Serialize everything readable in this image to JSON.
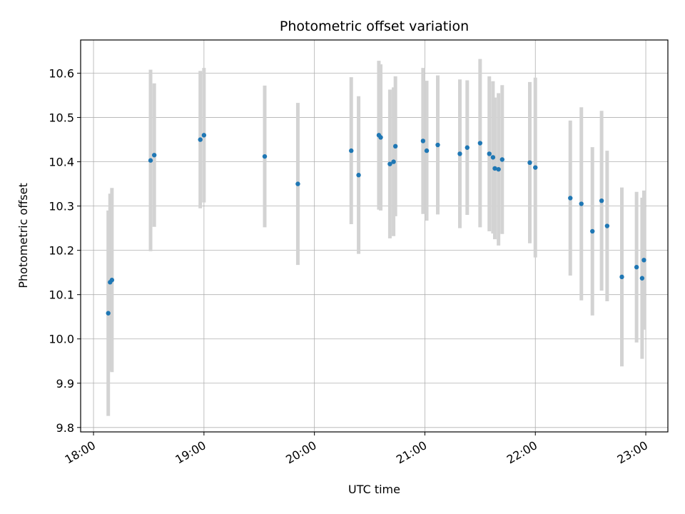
{
  "chart_data": {
    "type": "scatter",
    "title": "Photometric offset variation",
    "xlabel": "UTC time",
    "ylabel": "Photometric offset",
    "xlim": [
      "17:53",
      "23:12"
    ],
    "ylim": [
      9.79,
      10.675
    ],
    "x_ticks": [
      "18:00",
      "19:00",
      "20:00",
      "21:00",
      "22:00",
      "23:00"
    ],
    "y_ticks": [
      9.8,
      9.9,
      10.0,
      10.1,
      10.2,
      10.3,
      10.4,
      10.5,
      10.6
    ],
    "y_tick_labels": [
      "9.8",
      "9.9",
      "10.0",
      "10.1",
      "10.2",
      "10.3",
      "10.4",
      "10.5",
      "10.6"
    ],
    "grid": true,
    "point_color": "#1f77b4",
    "errorbar_color": "#d3d3d3",
    "points": [
      {
        "x": "18:08",
        "y": 10.058,
        "err": 0.232
      },
      {
        "x": "18:09",
        "y": 10.128,
        "err": 0.2
      },
      {
        "x": "18:10",
        "y": 10.133,
        "err": 0.208
      },
      {
        "x": "18:31",
        "y": 10.403,
        "err": 0.205
      },
      {
        "x": "18:33",
        "y": 10.415,
        "err": 0.162
      },
      {
        "x": "18:58",
        "y": 10.45,
        "err": 0.155
      },
      {
        "x": "19:00",
        "y": 10.46,
        "err": 0.152
      },
      {
        "x": "19:33",
        "y": 10.412,
        "err": 0.16
      },
      {
        "x": "19:51",
        "y": 10.35,
        "err": 0.183
      },
      {
        "x": "20:20",
        "y": 10.425,
        "err": 0.166
      },
      {
        "x": "20:24",
        "y": 10.37,
        "err": 0.178
      },
      {
        "x": "20:35",
        "y": 10.46,
        "err": 0.168
      },
      {
        "x": "20:36",
        "y": 10.455,
        "err": 0.165
      },
      {
        "x": "20:41",
        "y": 10.395,
        "err": 0.168
      },
      {
        "x": "20:43",
        "y": 10.4,
        "err": 0.168
      },
      {
        "x": "20:44",
        "y": 10.435,
        "err": 0.158
      },
      {
        "x": "20:59",
        "y": 10.447,
        "err": 0.165
      },
      {
        "x": "21:01",
        "y": 10.425,
        "err": 0.158
      },
      {
        "x": "21:07",
        "y": 10.438,
        "err": 0.157
      },
      {
        "x": "21:19",
        "y": 10.418,
        "err": 0.168
      },
      {
        "x": "21:23",
        "y": 10.432,
        "err": 0.152
      },
      {
        "x": "21:30",
        "y": 10.442,
        "err": 0.19
      },
      {
        "x": "21:35",
        "y": 10.418,
        "err": 0.175
      },
      {
        "x": "21:37",
        "y": 10.41,
        "err": 0.172
      },
      {
        "x": "21:38",
        "y": 10.385,
        "err": 0.16
      },
      {
        "x": "21:40",
        "y": 10.383,
        "err": 0.172
      },
      {
        "x": "21:42",
        "y": 10.405,
        "err": 0.168
      },
      {
        "x": "21:57",
        "y": 10.398,
        "err": 0.182
      },
      {
        "x": "22:00",
        "y": 10.387,
        "err": 0.203
      },
      {
        "x": "22:19",
        "y": 10.318,
        "err": 0.175
      },
      {
        "x": "22:25",
        "y": 10.305,
        "err": 0.218
      },
      {
        "x": "22:31",
        "y": 10.243,
        "err": 0.19
      },
      {
        "x": "22:36",
        "y": 10.312,
        "err": 0.203
      },
      {
        "x": "22:39",
        "y": 10.255,
        "err": 0.17
      },
      {
        "x": "22:47",
        "y": 10.14,
        "err": 0.202
      },
      {
        "x": "22:55",
        "y": 10.162,
        "err": 0.17
      },
      {
        "x": "22:58",
        "y": 10.137,
        "err": 0.182
      },
      {
        "x": "22:59",
        "y": 10.178,
        "err": 0.157
      }
    ]
  }
}
